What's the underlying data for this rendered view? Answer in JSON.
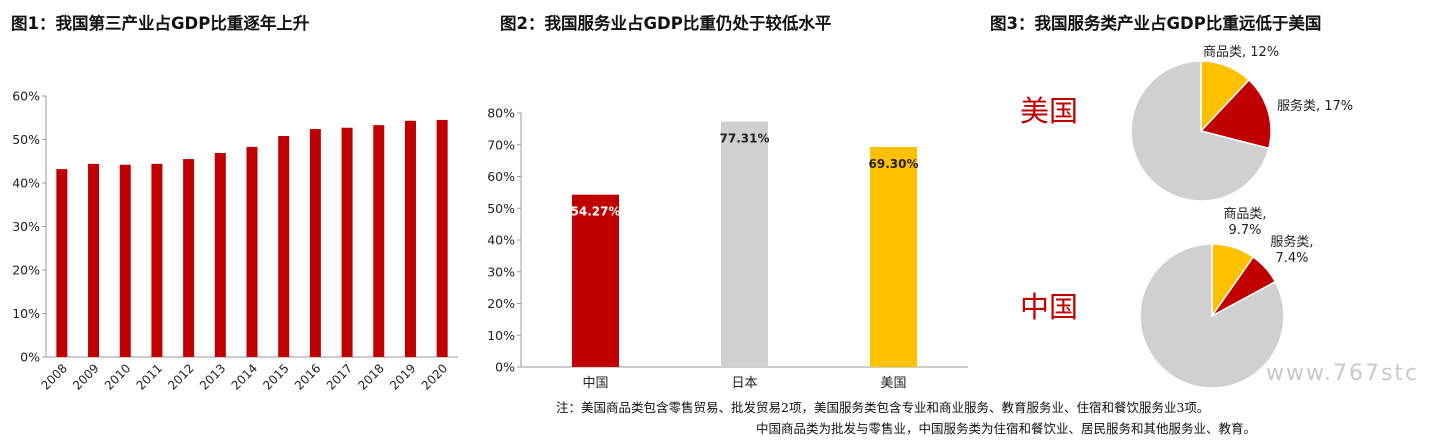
{
  "chart_data": [
    {
      "type": "bar",
      "title": "图1：我国第三产业占GDP比重逐年上升",
      "categories": [
        "2008",
        "2009",
        "2010",
        "2011",
        "2012",
        "2013",
        "2014",
        "2015",
        "2016",
        "2017",
        "2018",
        "2019",
        "2020"
      ],
      "values": [
        43.2,
        44.4,
        44.2,
        44.4,
        45.5,
        46.9,
        48.3,
        50.8,
        52.4,
        52.7,
        53.3,
        54.3,
        54.5
      ],
      "ylim": [
        0,
        60
      ],
      "y_ticks": [
        "0%",
        "10%",
        "20%",
        "30%",
        "40%",
        "50%",
        "60%"
      ],
      "color": "#c00000",
      "xlabel": "",
      "ylabel": ""
    },
    {
      "type": "bar",
      "title": "图2：我国服务业占GDP比重仍处于较低水平",
      "categories": [
        "中国",
        "日本",
        "美国"
      ],
      "values": [
        54.27,
        77.31,
        69.3
      ],
      "data_labels": [
        "54.27%",
        "77.31%",
        "69.30%"
      ],
      "colors": [
        "#c00000",
        "#d0d0d0",
        "#ffc000"
      ],
      "ylim": [
        0,
        80
      ],
      "y_ticks": [
        "0%",
        "10%",
        "20%",
        "30%",
        "40%",
        "50%",
        "60%",
        "70%",
        "80%"
      ],
      "xlabel": "",
      "ylabel": ""
    },
    {
      "type": "pie",
      "title": "图3：我国服务类产业占GDP比重远低于美国",
      "pies": [
        {
          "country": "美国",
          "slices": [
            {
              "name": "商品类",
              "value": 12,
              "label": "商品类, 12%",
              "color": "#ffc000"
            },
            {
              "name": "服务类",
              "value": 17,
              "label": "服务类, 17%",
              "color": "#c00000"
            },
            {
              "name": "",
              "value": 71,
              "label": "",
              "color": "#d0d0d0"
            }
          ]
        },
        {
          "country": "中国",
          "slices": [
            {
              "name": "商品类",
              "value": 9.7,
              "label_line1": "商品类,",
              "label_line2": "9.7%",
              "color": "#ffc000"
            },
            {
              "name": "服务类",
              "value": 7.4,
              "label_line1": "服务类,",
              "label_line2": "7.4%",
              "color": "#c00000"
            },
            {
              "name": "",
              "value": 82.9,
              "label": "",
              "color": "#d0d0d0"
            }
          ]
        }
      ]
    }
  ],
  "titles": {
    "fig1": "图1：我国第三产业占GDP比重逐年上升",
    "fig2": "图2：我国服务业占GDP比重仍处于较低水平",
    "fig3": "图3：我国服务类产业占GDP比重远低于美国"
  },
  "notes": {
    "line1": "注：美国商品类包含零售贸易、批发贸易2项，美国服务类包含专业和商业服务、教育服务业、住宿和餐饮服务业3项。",
    "line2": "中国商品类为批发与零售业，中国服务类为住宿和餐饮业、居民服务和其他服务业、教育。"
  },
  "watermark": "www.767stc"
}
